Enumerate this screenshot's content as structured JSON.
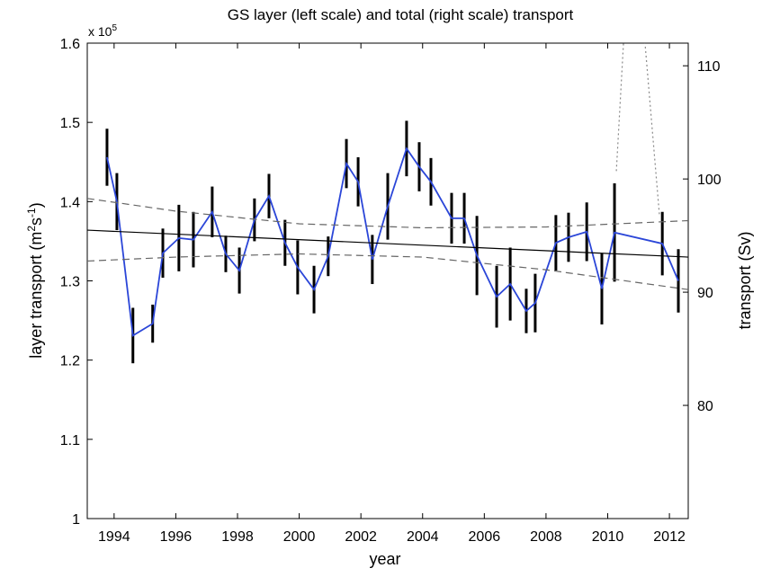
{
  "chart_data": {
    "type": "line",
    "title": "GS layer (left scale) and total (right scale) transport",
    "xlabel": "year",
    "ylabel": [
      "layer transport (m",
      "2",
      "s",
      "-1",
      ")"
    ],
    "y_multiplier": [
      "x 10",
      "5"
    ],
    "y2label": "transport (Sv)",
    "xlim": [
      1993.13,
      2012.61
    ],
    "xticks": [
      1994,
      1996,
      1998,
      2000,
      2002,
      2004,
      2006,
      2008,
      2010,
      2012
    ],
    "ylim": [
      1,
      1.6
    ],
    "yticks": [
      1,
      1.1,
      1.2,
      1.3,
      1.4,
      1.5,
      1.6
    ],
    "y2lim": [
      70,
      112
    ],
    "y2ticks": [
      80,
      90,
      100,
      110
    ],
    "series": [
      {
        "color": "#2b46d8",
        "style": "solid",
        "x": [
          1993.77,
          1994.09,
          1994.61,
          1995.25,
          1995.58,
          1996.1,
          1996.57,
          1997.18,
          1997.62,
          1998.06,
          1998.55,
          1999.02,
          1999.54,
          1999.95,
          2000.48,
          2000.94,
          2001.53,
          2001.91,
          2002.37,
          2002.87,
          2003.48,
          2003.89,
          2004.27,
          2004.94,
          2005.35,
          2005.76,
          2006.4,
          2006.84,
          2007.36,
          2007.65,
          2008.32,
          2008.73,
          2009.32,
          2009.81,
          2010.22,
          2011.77,
          2012.29
        ],
        "values": [
          1.456,
          1.4,
          1.231,
          1.246,
          1.335,
          1.354,
          1.352,
          1.387,
          1.334,
          1.313,
          1.377,
          1.407,
          1.348,
          1.317,
          1.289,
          1.331,
          1.448,
          1.425,
          1.327,
          1.394,
          1.467,
          1.444,
          1.425,
          1.379,
          1.379,
          1.332,
          1.28,
          1.296,
          1.262,
          1.272,
          1.348,
          1.355,
          1.362,
          1.29,
          1.361,
          1.347,
          1.3
        ],
        "errors": [
          0.036,
          0.036,
          0.035,
          0.024,
          0.031,
          0.042,
          0.035,
          0.032,
          0.023,
          0.029,
          0.027,
          0.028,
          0.029,
          0.034,
          0.03,
          0.025,
          0.031,
          0.031,
          0.031,
          0.042,
          0.035,
          0.031,
          0.03,
          0.032,
          0.032,
          0.05,
          0.039,
          0.046,
          0.028,
          0.037,
          0.035,
          0.031,
          0.037,
          0.045,
          0.062,
          0.04,
          0.04
        ]
      },
      {
        "color": "#000000",
        "style": "solid",
        "x": [
          1993.13,
          2012.61
        ],
        "values": [
          1.364,
          1.33
        ]
      },
      {
        "color": "#666666",
        "style": "dashed",
        "x": [
          1993.13,
          1996,
          2000,
          2004,
          2008,
          2012.61
        ],
        "values": [
          1.404,
          1.388,
          1.372,
          1.367,
          1.368,
          1.376
        ]
      },
      {
        "color": "#666666",
        "style": "dashed",
        "x": [
          1993.13,
          1996,
          2000,
          2004,
          2008,
          2012.61
        ],
        "values": [
          1.325,
          1.33,
          1.334,
          1.33,
          1.314,
          1.289
        ]
      },
      {
        "color": "#888888",
        "style": "dotted",
        "axis": "y2",
        "x": [
          2010.28,
          2010.79,
          2011.68
        ],
        "values": [
          100.7,
          125.6,
          96.7
        ]
      }
    ]
  }
}
